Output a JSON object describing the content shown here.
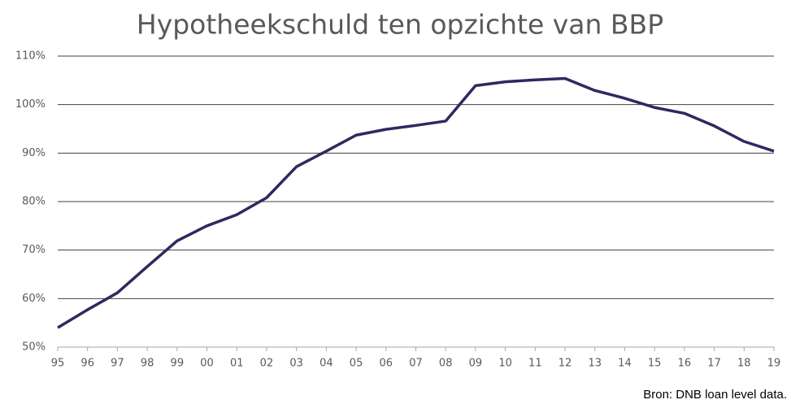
{
  "chart_data": {
    "type": "line",
    "title": "Hypotheekschuld ten opzichte van BBP",
    "source": "Bron: DNB loan level data.",
    "categories": [
      "95",
      "96",
      "97",
      "98",
      "99",
      "00",
      "01",
      "02",
      "03",
      "04",
      "05",
      "06",
      "07",
      "08",
      "09",
      "10",
      "11",
      "12",
      "13",
      "14",
      "15",
      "16",
      "17",
      "18",
      "19"
    ],
    "series": [
      {
        "name": "Hypotheekschuld / BBP",
        "color": "#30285f",
        "values": [
          54.0,
          57.7,
          61.2,
          66.6,
          71.9,
          75.0,
          77.3,
          80.8,
          87.2,
          90.4,
          93.7,
          94.9,
          95.7,
          96.6,
          103.9,
          104.7,
          105.1,
          105.4,
          102.9,
          101.3,
          99.4,
          98.2,
          95.6,
          92.4,
          90.4
        ]
      }
    ],
    "ylim": [
      50,
      110
    ],
    "yticks": [
      {
        "value": 50,
        "label": "50%"
      },
      {
        "value": 60,
        "label": "60%"
      },
      {
        "value": 70,
        "label": "70%"
      },
      {
        "value": 80,
        "label": "80%"
      },
      {
        "value": 90,
        "label": "90%"
      },
      {
        "value": 100,
        "label": "100%"
      },
      {
        "value": 110,
        "label": "110%"
      }
    ],
    "grid": true
  }
}
